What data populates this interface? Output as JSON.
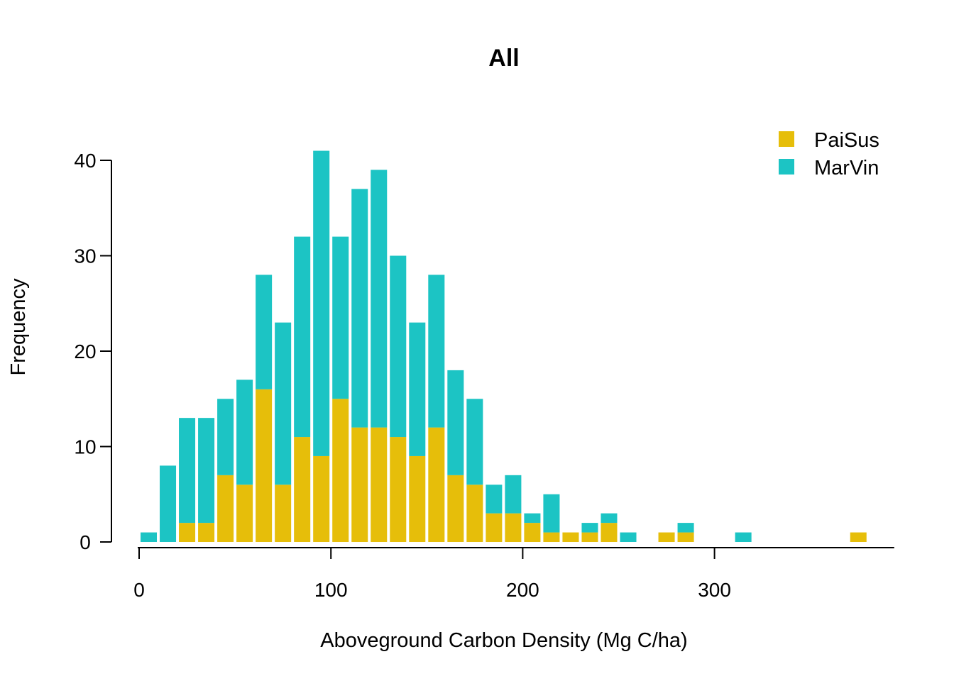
{
  "chart_data": {
    "type": "bar",
    "stacked": true,
    "title": "All",
    "xlabel": "Aboveground Carbon Density (Mg C/ha)",
    "ylabel": "Frequency",
    "xlim": [
      0,
      390
    ],
    "ylim": [
      0,
      41
    ],
    "xticks": [
      0,
      100,
      200,
      300
    ],
    "yticks": [
      0,
      10,
      20,
      30,
      40
    ],
    "bin_width": 10,
    "grid": false,
    "legend_position": "top-right",
    "x": [
      5,
      15,
      25,
      35,
      45,
      55,
      65,
      75,
      85,
      95,
      105,
      115,
      125,
      135,
      145,
      155,
      165,
      175,
      185,
      195,
      205,
      215,
      225,
      235,
      245,
      255,
      265,
      275,
      285,
      295,
      305,
      315,
      325,
      335,
      345,
      355,
      365,
      375
    ],
    "series": [
      {
        "name": "PaiSus",
        "color": "#E6BE0A",
        "values": [
          0,
          0,
          2,
          2,
          7,
          6,
          16,
          6,
          11,
          9,
          15,
          12,
          12,
          11,
          9,
          12,
          7,
          6,
          3,
          3,
          2,
          1,
          1,
          1,
          2,
          0,
          0,
          1,
          1,
          0,
          0,
          0,
          0,
          0,
          0,
          0,
          0,
          1
        ]
      },
      {
        "name": "MarVin",
        "color": "#1CC4C4",
        "values": [
          1,
          8,
          11,
          11,
          8,
          11,
          12,
          17,
          21,
          32,
          17,
          25,
          27,
          19,
          14,
          16,
          11,
          9,
          3,
          4,
          1,
          4,
          0,
          1,
          1,
          1,
          0,
          0,
          1,
          0,
          0,
          1,
          0,
          0,
          0,
          0,
          0,
          0
        ]
      }
    ]
  }
}
